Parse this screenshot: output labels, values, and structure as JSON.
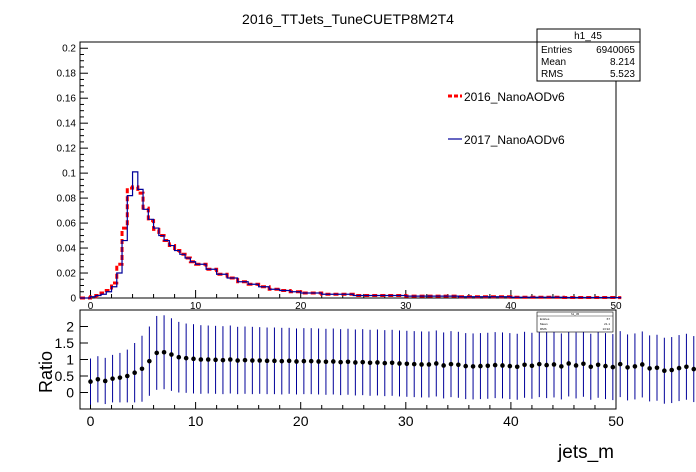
{
  "title": "2016_TTJets_TuneCUETP8M2T4",
  "stats_box": {
    "name": "h1_45",
    "entries_label": "Entries",
    "entries_value": "6940065",
    "mean_label": "Mean",
    "mean_value": "8.214",
    "rms_label": "RMS",
    "rms_value": "5.523"
  },
  "ratio_stats_box": {
    "name": "h1_45",
    "entries_label": "Entries",
    "entries_value": "67",
    "mean_label": "Mean",
    "mean_value": "21.1",
    "rms_label": "RMS",
    "rms_value": "13.92"
  },
  "legend": {
    "series_2016": "2016_NanoAODv6",
    "series_2017": "2017_NanoAODv6"
  },
  "colors": {
    "series_2016": "#ff0000",
    "series_2017": "#000099",
    "ratio_points": "#000000",
    "ratio_errors": "#000099"
  },
  "chart_data": [
    {
      "type": "line",
      "style": "histogram-step",
      "title": "2016_TTJets_TuneCUETP8M2T4",
      "xlim": [
        -1,
        50
      ],
      "ylim": [
        0,
        0.205
      ],
      "bin_width": 0.5,
      "x_ticks": [
        "0",
        "10",
        "20",
        "30",
        "40",
        "50"
      ],
      "y_ticks": [
        "0",
        "0.02",
        "0.04",
        "0.06",
        "0.08",
        "0.1",
        "0.12",
        "0.14",
        "0.16",
        "0.18",
        "0.2"
      ],
      "series": [
        {
          "name": "2016_NanoAODv6",
          "x": [
            -1,
            -0.5,
            0,
            0.5,
            1,
            1.5,
            2,
            2.5,
            3,
            3.5,
            4,
            4.5,
            5,
            5.5,
            6,
            6.5,
            7,
            7.5,
            8,
            8.5,
            9,
            9.5,
            10,
            11,
            12,
            13,
            14,
            15,
            16,
            17,
            18,
            19,
            20,
            22,
            25,
            30,
            35,
            40,
            45,
            50
          ],
          "values": [
            0,
            0,
            0.001,
            0.002,
            0.004,
            0.006,
            0.012,
            0.027,
            0.056,
            0.088,
            0.089,
            0.084,
            0.072,
            0.062,
            0.055,
            0.05,
            0.046,
            0.042,
            0.038,
            0.035,
            0.032,
            0.029,
            0.027,
            0.023,
            0.019,
            0.016,
            0.013,
            0.011,
            0.009,
            0.007,
            0.006,
            0.005,
            0.004,
            0.003,
            0.002,
            0.0015,
            0.001,
            0.0006,
            0.0004,
            0.0003
          ]
        },
        {
          "name": "2017_NanoAODv6",
          "x": [
            -1,
            -0.5,
            0,
            0.5,
            1,
            1.5,
            2,
            2.5,
            3,
            3.5,
            4,
            4.5,
            5,
            5.5,
            6,
            6.5,
            7,
            7.5,
            8,
            8.5,
            9,
            9.5,
            10,
            11,
            12,
            13,
            14,
            15,
            16,
            17,
            18,
            19,
            20,
            22,
            25,
            30,
            35,
            40,
            45,
            50
          ],
          "values": [
            0,
            0,
            0.001,
            0.002,
            0.003,
            0.005,
            0.009,
            0.02,
            0.046,
            0.082,
            0.101,
            0.087,
            0.071,
            0.063,
            0.056,
            0.05,
            0.046,
            0.042,
            0.038,
            0.035,
            0.032,
            0.029,
            0.027,
            0.023,
            0.019,
            0.016,
            0.013,
            0.011,
            0.009,
            0.007,
            0.006,
            0.005,
            0.004,
            0.003,
            0.002,
            0.0015,
            0.001,
            0.0006,
            0.0004,
            0.0003
          ]
        }
      ]
    },
    {
      "type": "scatter",
      "style": "ratio-with-error-bars",
      "xlabel": "jets_m",
      "ylabel": "Ratio",
      "xlim": [
        -1,
        50
      ],
      "ylim": [
        -0.5,
        2.5
      ],
      "x_ticks": [
        "0",
        "10",
        "20",
        "30",
        "40",
        "50"
      ],
      "y_ticks": [
        "0",
        "0.5",
        "1",
        "1.5",
        "2"
      ],
      "x_start": 0,
      "x_step": 0.7,
      "values": [
        0.33,
        0.4,
        0.35,
        0.42,
        0.45,
        0.5,
        0.6,
        0.72,
        0.95,
        1.2,
        1.22,
        1.15,
        1.07,
        1.04,
        1.02,
        1.0,
        1.0,
        0.99,
        0.98,
        1.0,
        0.97,
        0.98,
        0.97,
        0.97,
        0.96,
        0.96,
        0.95,
        0.96,
        0.94,
        0.95,
        0.95,
        0.94,
        0.93,
        0.94,
        0.92,
        0.93,
        0.91,
        0.92,
        0.9,
        0.91,
        0.89,
        0.9,
        0.88,
        0.87,
        0.86,
        0.85,
        0.85,
        0.88,
        0.82,
        0.86,
        0.84,
        0.8,
        0.79,
        0.8,
        0.81,
        0.83,
        0.82,
        0.8,
        0.78,
        0.84,
        0.81,
        0.86,
        0.83,
        0.85,
        0.79,
        0.88,
        0.82,
        0.87,
        0.78,
        0.84,
        0.8,
        0.77,
        0.86,
        0.76,
        0.79,
        0.85,
        0.73,
        0.75,
        0.66,
        0.68,
        0.74,
        0.78,
        0.71,
        0.72,
        0.79,
        0.76,
        0.7,
        0.64,
        0.68,
        0.71
      ],
      "errors": [
        0.7,
        0.7,
        0.7,
        0.72,
        0.75,
        0.8,
        0.9,
        1.0,
        1.05,
        1.12,
        1.12,
        1.1,
        1.07,
        1.05,
        1.05,
        1.04,
        1.03,
        1.03,
        1.03,
        1.03,
        1.02,
        1.02,
        1.02,
        1.01,
        1.01,
        1.01,
        1.01,
        1.0,
        1.0,
        1.0,
        1.0,
        1.0,
        1.0,
        1.0,
        1.0,
        1.0,
        1.0,
        1.0,
        1.0,
        1.0,
        1.0,
        1.0,
        1.0,
        1.0,
        1.0,
        1.0,
        1.0,
        1.0,
        1.0,
        1.0,
        1.0,
        1.0,
        1.0,
        1.0,
        1.0,
        1.0,
        1.0,
        1.0,
        1.0,
        1.0,
        1.0,
        1.0,
        1.0,
        1.0,
        1.0,
        1.0,
        1.0,
        1.0,
        1.0,
        1.0,
        1.0,
        1.0,
        1.0,
        1.0,
        1.0,
        1.0,
        1.0,
        1.0,
        1.0,
        1.0,
        1.0,
        1.0,
        1.0,
        1.0,
        1.0,
        1.0,
        1.0,
        1.0,
        1.0,
        1.0
      ]
    }
  ]
}
